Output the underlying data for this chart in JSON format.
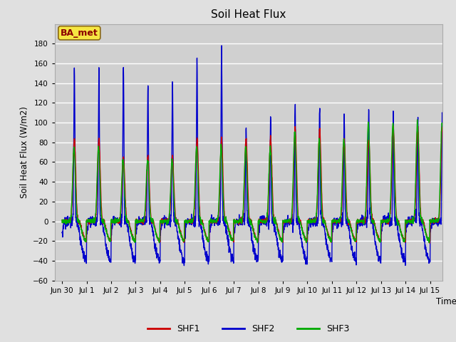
{
  "title": "Soil Heat Flux",
  "ylabel": "Soil Heat Flux (W/m2)",
  "xlabel": "Time",
  "ylim": [
    -60,
    200
  ],
  "yticks": [
    -60,
    -40,
    -20,
    0,
    20,
    40,
    60,
    80,
    100,
    120,
    140,
    160,
    180
  ],
  "colors": {
    "SHF1": "#cc0000",
    "SHF2": "#0000cc",
    "SHF3": "#00aa00"
  },
  "legend_label": "BA_met",
  "background_color": "#e0e0e0",
  "plot_bg_color": "#d0d0d0",
  "grid_color": "#ffffff",
  "linewidth": 1.0,
  "n_days": 15.5,
  "points_per_day": 144,
  "shf2_peaks": [
    158,
    158,
    158,
    141,
    145,
    166,
    179,
    95,
    103,
    117,
    120,
    108,
    117,
    108,
    108
  ],
  "shf1_peaks": [
    83,
    83,
    65,
    65,
    65,
    83,
    83,
    83,
    83,
    95,
    93,
    83,
    83,
    95,
    95
  ],
  "shf3_peaks": [
    75,
    75,
    62,
    62,
    62,
    75,
    75,
    75,
    75,
    90,
    83,
    83,
    100,
    100,
    100
  ],
  "shf2_night": -40,
  "shf1_night": -20,
  "shf3_night": -20
}
